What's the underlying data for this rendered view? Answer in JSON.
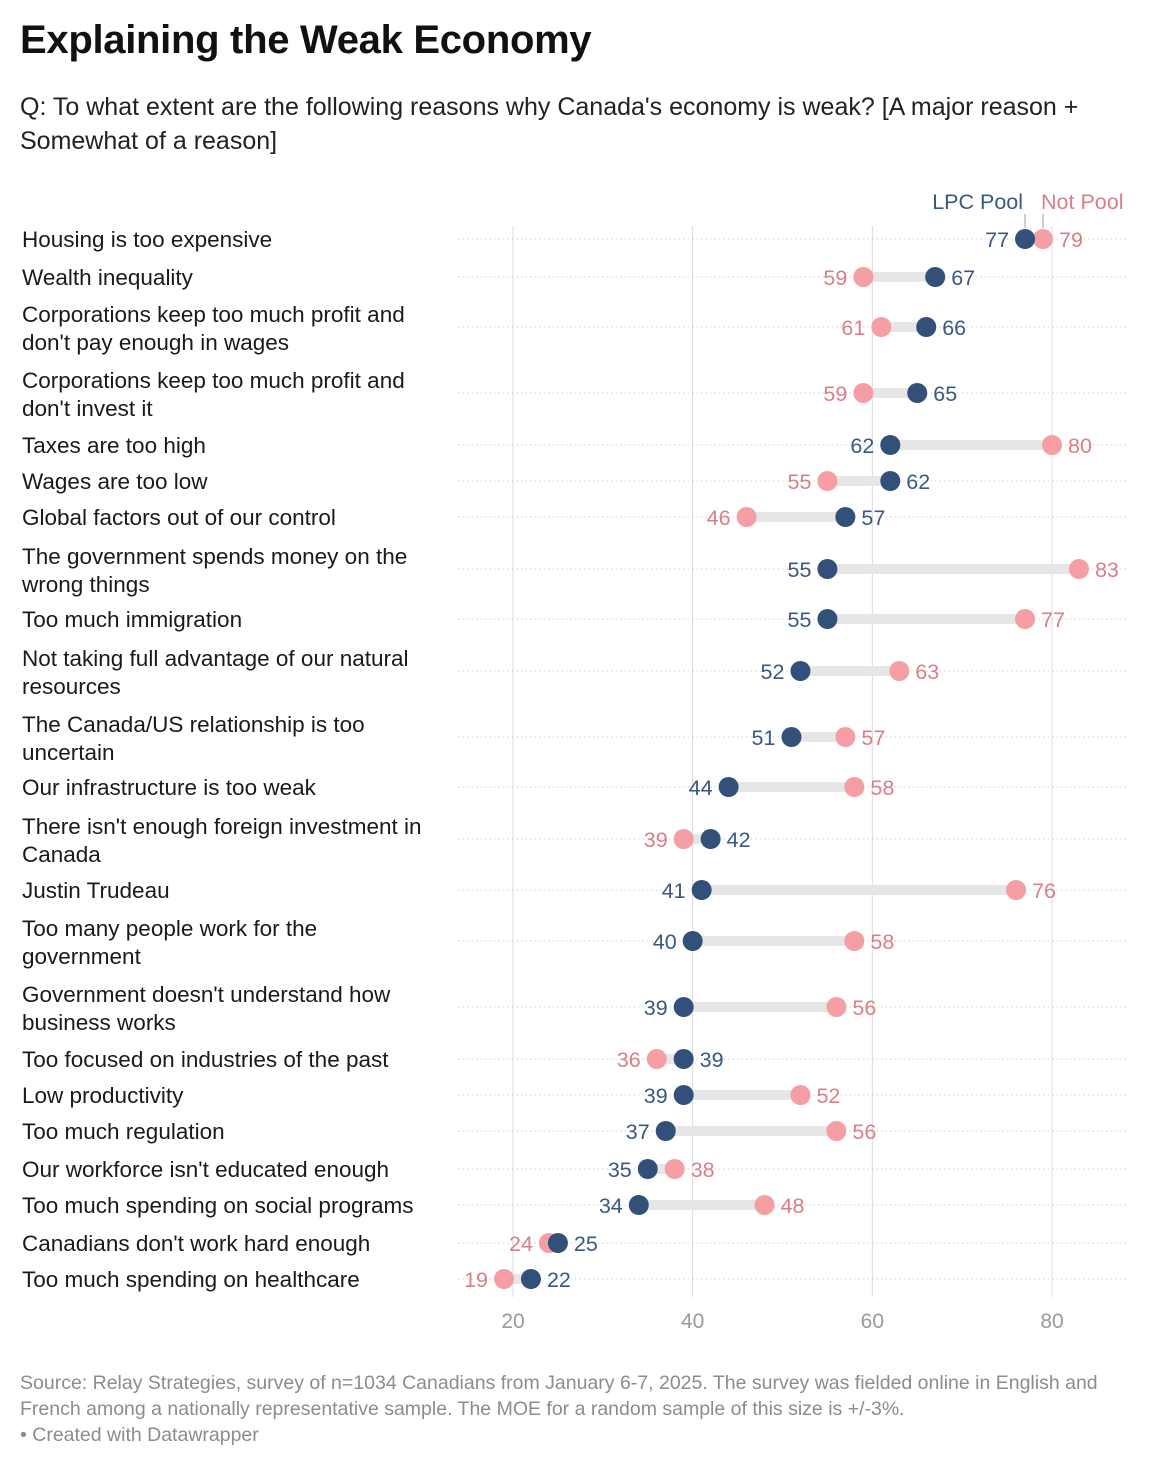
{
  "title": "Explaining the Weak Economy",
  "subtitle": "Q: To what extent are the following reasons why Canada's economy is weak? [A major reason + Somewhat of a reason]",
  "source": "Source: Relay Strategies, survey of n=1034 Canadians from January 6-7, 2025. The survey was fielded online in English and French among a nationally representative sample. The MOE for a random sample of this size is +/-3%.",
  "credit": "• Created with Datawrapper",
  "colors": {
    "lpc_pool": "#33507a",
    "not_pool": "#f59ea4",
    "lpc_label": "#3b5782",
    "not_label": "#d97f88",
    "connector": "#e6e6e6"
  },
  "chart_data": {
    "type": "dot-range",
    "xlim": [
      14,
      88
    ],
    "x_ticks": [
      "20",
      "40",
      "60",
      "80"
    ],
    "grid": true,
    "legend_position": "top-right",
    "series": [
      {
        "name": "LPC Pool",
        "key": "lpc"
      },
      {
        "name": "Not Pool",
        "key": "not"
      }
    ],
    "rows": [
      {
        "label": [
          "Housing is too expensive"
        ],
        "lpc": 77,
        "not": 79
      },
      {
        "label": [
          "Wealth inequality"
        ],
        "lpc": 67,
        "not": 59
      },
      {
        "label": [
          "Corporations keep too much profit and",
          "don't pay enough in wages"
        ],
        "lpc": 66,
        "not": 61
      },
      {
        "label": [
          "Corporations keep too much profit and",
          "don't invest it"
        ],
        "lpc": 65,
        "not": 59
      },
      {
        "label": [
          "Taxes are too high"
        ],
        "lpc": 62,
        "not": 80
      },
      {
        "label": [
          "Wages are too low"
        ],
        "lpc": 62,
        "not": 55
      },
      {
        "label": [
          "Global factors out of our control"
        ],
        "lpc": 57,
        "not": 46
      },
      {
        "label": [
          "The government spends money on the",
          "wrong things"
        ],
        "lpc": 55,
        "not": 83
      },
      {
        "label": [
          "Too much immigration"
        ],
        "lpc": 55,
        "not": 77
      },
      {
        "label": [
          "Not taking full advantage of our natural",
          "resources"
        ],
        "lpc": 52,
        "not": 63
      },
      {
        "label": [
          "The Canada/US relationship is too",
          "uncertain"
        ],
        "lpc": 51,
        "not": 57
      },
      {
        "label": [
          "Our infrastructure is too weak"
        ],
        "lpc": 44,
        "not": 58
      },
      {
        "label": [
          "There isn't enough foreign investment in",
          "Canada"
        ],
        "lpc": 42,
        "not": 39
      },
      {
        "label": [
          "Justin Trudeau"
        ],
        "lpc": 41,
        "not": 76
      },
      {
        "label": [
          "Too many people work for the",
          "government"
        ],
        "lpc": 40,
        "not": 58
      },
      {
        "label": [
          "Government doesn't understand how",
          "business works"
        ],
        "lpc": 39,
        "not": 56
      },
      {
        "label": [
          "Too focused on industries of the past"
        ],
        "lpc": 39,
        "not": 36
      },
      {
        "label": [
          "Low productivity"
        ],
        "lpc": 39,
        "not": 52
      },
      {
        "label": [
          "Too much regulation"
        ],
        "lpc": 37,
        "not": 56
      },
      {
        "label": [
          "Our workforce isn't educated enough"
        ],
        "lpc": 35,
        "not": 38
      },
      {
        "label": [
          "Too much spending on social programs"
        ],
        "lpc": 34,
        "not": 48
      },
      {
        "label": [
          "Canadians don't work hard enough"
        ],
        "lpc": 25,
        "not": 24
      },
      {
        "label": [
          "Too much spending on healthcare"
        ],
        "lpc": 22,
        "not": 19
      }
    ]
  }
}
